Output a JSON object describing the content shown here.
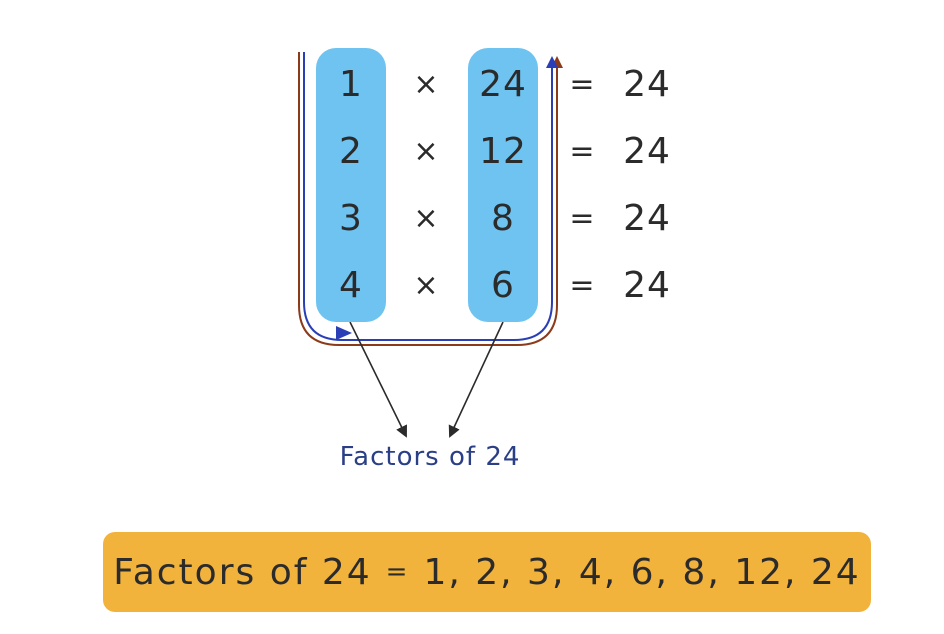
{
  "rows": [
    {
      "left": "1",
      "op": "×",
      "right": "24",
      "eq": "=",
      "product": "24"
    },
    {
      "left": "2",
      "op": "×",
      "right": "12",
      "eq": "=",
      "product": "24"
    },
    {
      "left": "3",
      "op": "×",
      "right": "8",
      "eq": "=",
      "product": "24"
    },
    {
      "left": "4",
      "op": "×",
      "right": "6",
      "eq": "=",
      "product": "24"
    }
  ],
  "caption": "Factors of 24",
  "banner": {
    "label": "Factors of 24",
    "sep": "=",
    "values": "1, 2, 3, 4, 6, 8, 12, 24"
  },
  "colors": {
    "pill": "#6ec3f0",
    "banner": "#f2b33d",
    "caption": "#2b3f86",
    "loop_blue": "#2a3fb5",
    "loop_brown": "#8b3a1a",
    "pointer": "#2b2b2b"
  }
}
